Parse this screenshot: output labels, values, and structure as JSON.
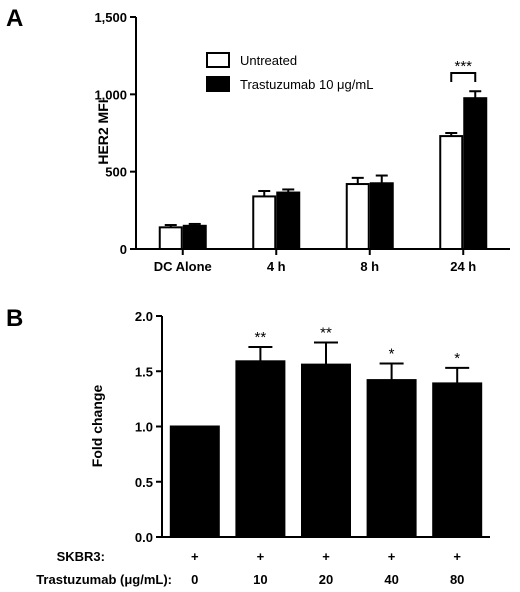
{
  "panel_a_letter": "A",
  "panel_b_letter": "B",
  "chart_data": [
    {
      "type": "bar",
      "categories": [
        "DC Alone",
        "4 h",
        "8 h",
        "24 h"
      ],
      "series": [
        {
          "name": "Untreated",
          "values": [
            140,
            340,
            420,
            730
          ],
          "errors": [
            15,
            35,
            40,
            20
          ],
          "color": "#ffffff"
        },
        {
          "name": "Trastuzumab 10 μg/mL",
          "values": [
            150,
            365,
            425,
            975
          ],
          "errors": [
            12,
            20,
            50,
            45
          ],
          "color": "#000000"
        }
      ],
      "title": "",
      "xlabel": "",
      "ylabel": "HER2 MFI",
      "ylim": [
        0,
        1500
      ],
      "yticks": [
        0,
        500,
        1000,
        1500
      ],
      "ytick_labels": [
        "0",
        "500",
        "1,000",
        "1,500"
      ],
      "legend_position": "top-left",
      "annotations": [
        {
          "text": "***",
          "category": "24 h",
          "type": "bracket"
        }
      ]
    },
    {
      "type": "bar",
      "categories": [
        "0",
        "10",
        "20",
        "40",
        "80"
      ],
      "values": [
        1.0,
        1.59,
        1.56,
        1.42,
        1.39
      ],
      "errors": [
        0,
        0.13,
        0.2,
        0.15,
        0.14
      ],
      "significance": [
        "",
        "**",
        "**",
        "*",
        "*"
      ],
      "color": "#000000",
      "title": "",
      "xlabel": "",
      "ylabel": "Fold change",
      "ylim": [
        0,
        2.0
      ],
      "yticks": [
        0,
        0.5,
        1.0,
        1.5,
        2.0
      ],
      "ytick_labels": [
        "0.0",
        "0.5",
        "1.0",
        "1.5",
        "2.0"
      ],
      "table_rows": [
        {
          "label": "SKBR3:",
          "cells": [
            "+",
            "+",
            "+",
            "+",
            "+"
          ]
        },
        {
          "label": "Trastuzumab (μg/mL):",
          "cells": [
            "0",
            "10",
            "20",
            "40",
            "80"
          ]
        }
      ]
    }
  ]
}
